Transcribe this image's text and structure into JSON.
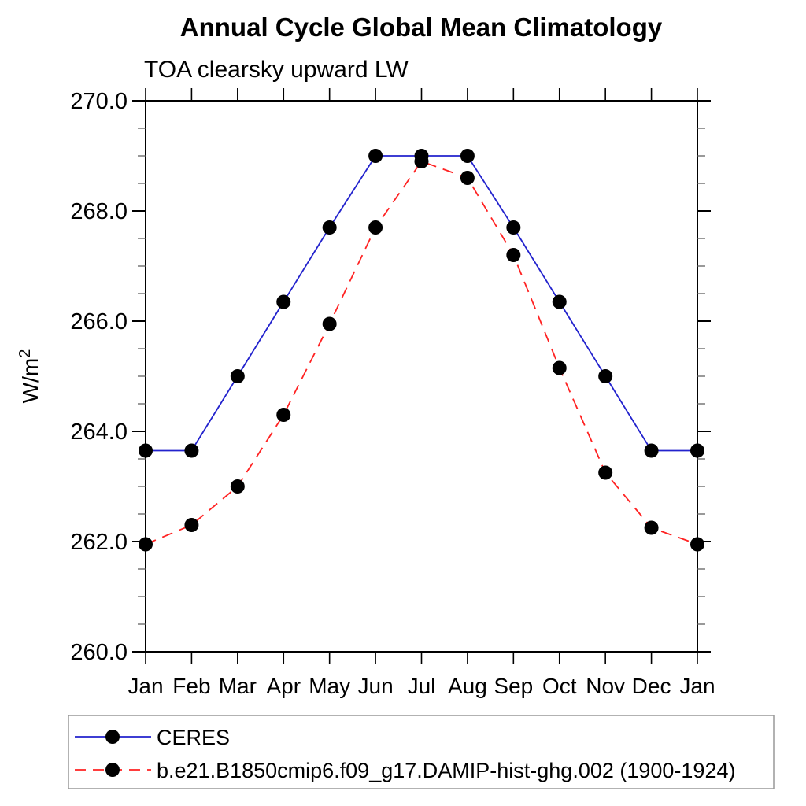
{
  "title": "Annual Cycle Global Mean Climatology",
  "subtitle": "TOA clearsky upward LW",
  "chart_data": {
    "type": "line",
    "title": "Annual Cycle Global Mean Climatology",
    "subtitle": "TOA clearsky upward LW",
    "xlabel": "",
    "ylabel": "W/m",
    "ylabel_superscript": "2",
    "categories": [
      "Jan",
      "Feb",
      "Mar",
      "Apr",
      "May",
      "Jun",
      "Jul",
      "Aug",
      "Sep",
      "Oct",
      "Nov",
      "Dec",
      "Jan"
    ],
    "ylim": [
      260.0,
      270.0
    ],
    "y_major_tick_values": [
      260,
      262,
      264,
      266,
      268,
      270
    ],
    "y_tick_labels": [
      "260.0",
      "262.0",
      "264.0",
      "266.0",
      "268.0",
      "270.0"
    ],
    "y_minor_tick_step": 0.5,
    "grid": false,
    "legend_position": "bottom-left",
    "marker_color": "#000000",
    "axis_color": "#000000",
    "legend_border_color": "#999999",
    "series": [
      {
        "name": "CERES",
        "color": "#2222cd",
        "style": "solid",
        "marker": "circle",
        "values": [
          263.65,
          263.65,
          265.0,
          266.35,
          267.7,
          269.0,
          269.0,
          269.0,
          267.7,
          266.35,
          265.0,
          263.65,
          263.65
        ]
      },
      {
        "name": "b.e21.B1850cmip6.f09_g17.DAMIP-hist-ghg.002 (1900-1924)",
        "color": "#ff2222",
        "style": "dashed",
        "marker": "circle",
        "values": [
          261.95,
          262.3,
          263.0,
          264.3,
          265.95,
          267.7,
          268.9,
          268.6,
          267.2,
          265.15,
          263.25,
          262.25,
          261.95
        ]
      }
    ]
  }
}
